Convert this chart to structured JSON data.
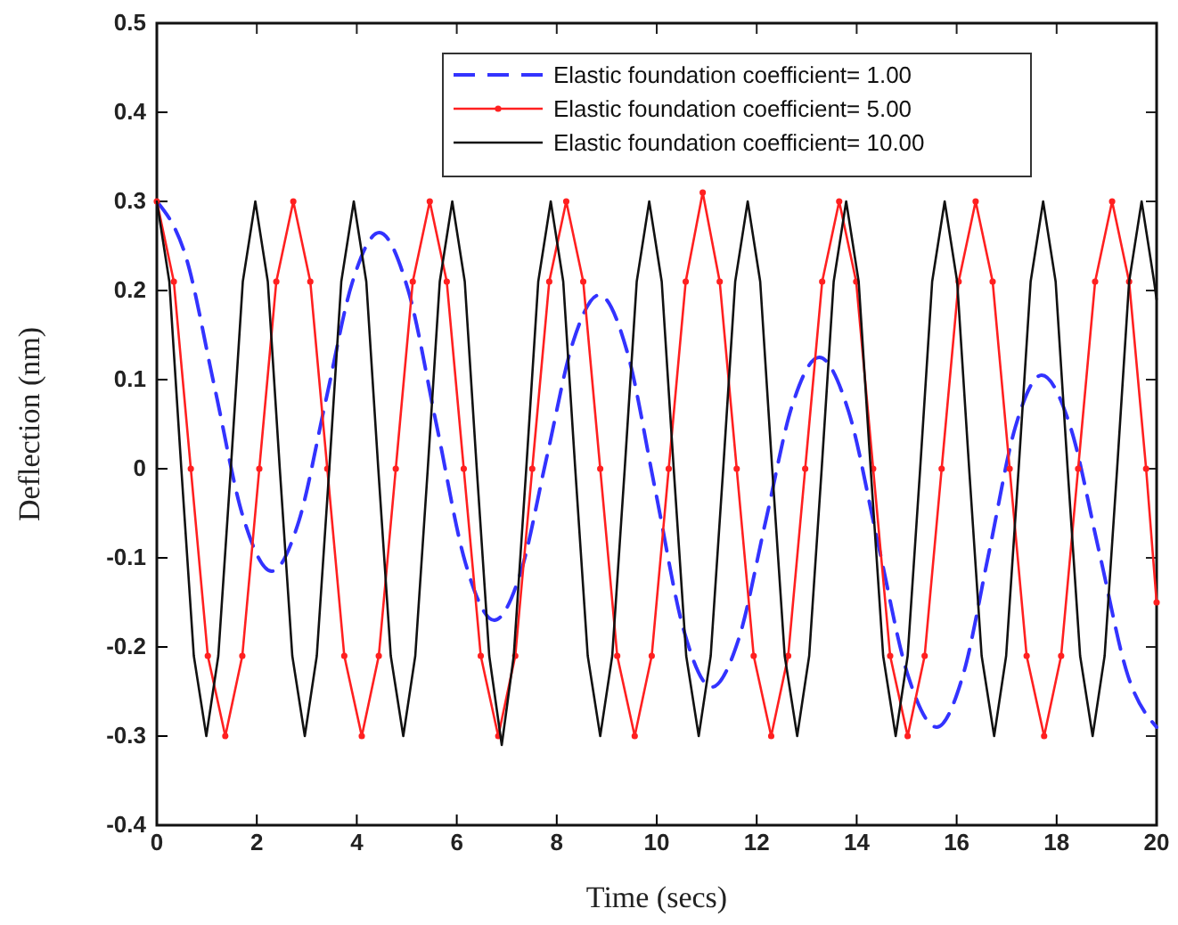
{
  "chart_data": {
    "type": "line",
    "xlabel": "Time (secs)",
    "ylabel": "Deflection (nm)",
    "xlim": [
      0,
      20
    ],
    "ylim": [
      -0.4,
      0.5
    ],
    "xticks": [
      0,
      2,
      4,
      6,
      8,
      10,
      12,
      14,
      16,
      18,
      20
    ],
    "yticks": [
      -0.4,
      -0.3,
      -0.2,
      -0.1,
      0,
      0.1,
      0.2,
      0.3,
      0.4,
      0.5
    ],
    "grid": false,
    "legend": "top",
    "series": [
      {
        "name": "Elastic foundation coefficient= 1.00",
        "color": "#3333ff",
        "line_style": "dashed",
        "marker": "none",
        "x": [
          0,
          0.575,
          1.15,
          1.725,
          2.3,
          2.84,
          3.375,
          3.91,
          4.45,
          5.025,
          5.6,
          6.175,
          6.75,
          7.275,
          7.8,
          8.325,
          8.85,
          9.41,
          9.975,
          10.54,
          11.1,
          11.64,
          12.175,
          12.71,
          13.25,
          13.84,
          14.425,
          15.01,
          15.6,
          16.125,
          16.65,
          17.175,
          17.7,
          18.275,
          18.85,
          19.425,
          20
        ],
        "values": [
          0.3,
          0.239,
          0.093,
          -0.054,
          -0.115,
          -0.059,
          0.075,
          0.209,
          0.265,
          0.201,
          0.048,
          -0.106,
          -0.17,
          -0.117,
          0.013,
          0.142,
          0.195,
          0.131,
          -0.025,
          -0.181,
          -0.245,
          -0.191,
          -0.06,
          0.071,
          0.125,
          0.064,
          -0.083,
          -0.229,
          -0.29,
          -0.232,
          -0.093,
          0.047,
          0.105,
          0.047,
          -0.093,
          -0.232,
          -0.29
        ]
      },
      {
        "name": "Elastic foundation coefficient= 5.00",
        "color": "#ff2020",
        "line_style": "solid",
        "marker": "circle",
        "x": [
          0,
          0.34,
          0.68,
          1.02,
          1.37,
          1.71,
          2.05,
          2.39,
          2.73,
          3.07,
          3.41,
          3.75,
          4.1,
          4.44,
          4.78,
          5.12,
          5.46,
          5.8,
          6.14,
          6.48,
          6.83,
          7.17,
          7.51,
          7.85,
          8.19,
          8.53,
          8.87,
          9.21,
          9.56,
          9.9,
          10.24,
          10.58,
          10.92,
          11.26,
          11.6,
          11.94,
          12.29,
          12.63,
          12.97,
          13.31,
          13.65,
          13.99,
          14.33,
          14.67,
          15.02,
          15.36,
          15.7,
          16.04,
          16.38,
          16.72,
          17.06,
          17.4,
          17.75,
          18.09,
          18.43,
          18.77,
          19.11,
          19.45,
          19.79,
          20
        ],
        "values": [
          0.3,
          0.21,
          0,
          -0.21,
          -0.3,
          -0.21,
          0,
          0.21,
          0.3,
          0.21,
          0,
          -0.21,
          -0.3,
          -0.21,
          0,
          0.21,
          0.3,
          0.21,
          0,
          -0.21,
          -0.3,
          -0.21,
          0,
          0.21,
          0.3,
          0.21,
          0,
          -0.21,
          -0.3,
          -0.21,
          0,
          0.21,
          0.31,
          0.21,
          0,
          -0.21,
          -0.3,
          -0.21,
          0,
          0.21,
          0.3,
          0.21,
          0,
          -0.21,
          -0.3,
          -0.21,
          0,
          0.21,
          0.3,
          0.21,
          0,
          -0.21,
          -0.3,
          -0.21,
          0,
          0.21,
          0.3,
          0.21,
          0,
          -0.15
        ]
      },
      {
        "name": "Elastic foundation coefficient= 10.00",
        "color": "#111111",
        "line_style": "solid",
        "marker": "none",
        "x": [
          0,
          0.25,
          0.49,
          0.74,
          0.99,
          1.23,
          1.48,
          1.72,
          1.97,
          2.22,
          2.46,
          2.71,
          2.96,
          3.2,
          3.45,
          3.69,
          3.94,
          4.19,
          4.43,
          4.68,
          4.93,
          5.17,
          5.42,
          5.66,
          5.91,
          6.16,
          6.4,
          6.65,
          6.9,
          7.14,
          7.39,
          7.63,
          7.88,
          8.13,
          8.37,
          8.62,
          8.87,
          9.11,
          9.36,
          9.6,
          9.85,
          10.1,
          10.34,
          10.59,
          10.84,
          11.08,
          11.33,
          11.57,
          11.82,
          12.07,
          12.31,
          12.56,
          12.81,
          13.05,
          13.3,
          13.54,
          13.79,
          14.04,
          14.28,
          14.53,
          14.78,
          15.02,
          15.27,
          15.51,
          15.76,
          16.01,
          16.25,
          16.5,
          16.75,
          16.99,
          17.24,
          17.48,
          17.73,
          17.98,
          18.22,
          18.47,
          18.72,
          18.96,
          19.21,
          19.45,
          19.7,
          19.95,
          20
        ],
        "values": [
          0.3,
          0.21,
          0,
          -0.21,
          -0.3,
          -0.21,
          0,
          0.21,
          0.3,
          0.21,
          0,
          -0.21,
          -0.3,
          -0.21,
          0,
          0.21,
          0.3,
          0.21,
          0,
          -0.21,
          -0.3,
          -0.21,
          0,
          0.21,
          0.3,
          0.21,
          0,
          -0.21,
          -0.31,
          -0.21,
          0,
          0.21,
          0.3,
          0.21,
          0,
          -0.21,
          -0.3,
          -0.21,
          0,
          0.21,
          0.3,
          0.21,
          0,
          -0.21,
          -0.3,
          -0.21,
          0,
          0.21,
          0.3,
          0.21,
          0,
          -0.21,
          -0.3,
          -0.21,
          0,
          0.21,
          0.3,
          0.21,
          0,
          -0.21,
          -0.3,
          -0.21,
          0,
          0.21,
          0.3,
          0.21,
          0,
          -0.21,
          -0.3,
          -0.21,
          0,
          0.21,
          0.3,
          0.21,
          0,
          -0.21,
          -0.3,
          -0.21,
          0,
          0.21,
          0.3,
          0.21,
          0.19
        ]
      }
    ]
  }
}
